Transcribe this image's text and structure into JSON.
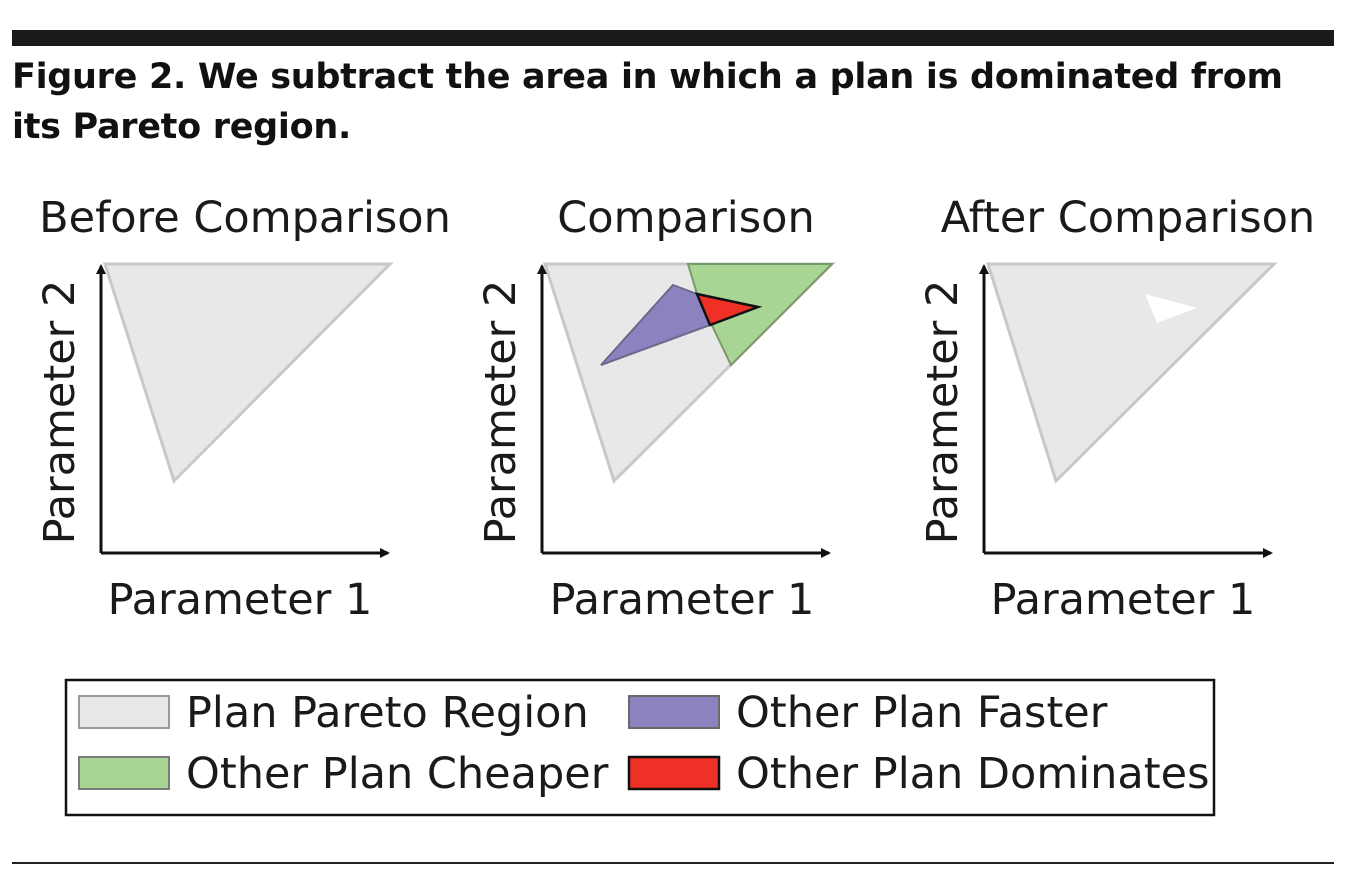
{
  "figure": {
    "caption": "Figure 2. We subtract the area in which a plan is dominated from its Pareto region."
  },
  "panels": [
    {
      "title": "Before Comparison",
      "xlabel": "Parameter 1",
      "ylabel": "Parameter 2"
    },
    {
      "title": "Comparison",
      "xlabel": "Parameter 1",
      "ylabel": "Parameter 2"
    },
    {
      "title": "After Comparison",
      "xlabel": "Parameter 1",
      "ylabel": "Parameter 2"
    }
  ],
  "legend": {
    "items": [
      {
        "label": "Plan Pareto Region",
        "color": "#e8e8e8"
      },
      {
        "label": "Other Plan Faster",
        "color": "#8b82c0"
      },
      {
        "label": "Other Plan Cheaper",
        "color": "#a9d594"
      },
      {
        "label": "Other Plan Dominates",
        "color": "#ee3026"
      }
    ]
  },
  "colors": {
    "pareto_fill": "#e8e8e8",
    "pareto_stroke": "#c8c8c8",
    "faster_fill": "#8b82c0",
    "cheaper_fill": "#a9d594",
    "dominates_fill": "#ee3026",
    "removed_fill": "#ffffff",
    "axis": "#111111"
  }
}
